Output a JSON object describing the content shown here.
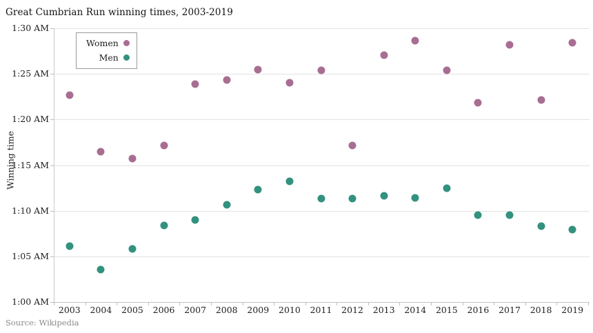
{
  "chart": {
    "title": "Great Cumbrian Run winning times, 2003-2019",
    "y_axis_label": "Winning time",
    "source": "Source: Wikipedia"
  },
  "colors": {
    "women": "#a86e92",
    "men": "#33917f",
    "gridline": "#e2e2e2",
    "axis": "#c2c2c2",
    "text": "#1d1d1d",
    "muted": "#8a8a8a",
    "background": "#ffffff"
  },
  "chart_data": {
    "type": "scatter",
    "title": "Great Cumbrian Run winning times, 2003-2019",
    "xlabel": "",
    "ylabel": "Winning time",
    "categories": [
      "2003",
      "2004",
      "2005",
      "2006",
      "2007",
      "2008",
      "2009",
      "2010",
      "2011",
      "2012",
      "2013",
      "2014",
      "2015",
      "2016",
      "2017",
      "2018",
      "2019"
    ],
    "series": [
      {
        "name": "Women",
        "color": "#a86e92",
        "values": [
          "1:22:40",
          "1:16:30",
          "1:15:45",
          "1:17:10",
          "1:23:55",
          "1:24:20",
          "1:25:30",
          "1:24:00",
          "1:25:25",
          "1:17:10",
          "1:27:05",
          "1:28:40",
          "1:25:25",
          "1:21:50",
          "1:28:10",
          "1:22:10",
          "1:28:25"
        ]
      },
      {
        "name": "Men",
        "color": "#33917f",
        "values": [
          "1:06:05",
          "1:03:35",
          "1:05:50",
          "1:08:25",
          "1:09:00",
          "1:10:40",
          "1:12:20",
          "1:13:15",
          "1:11:20",
          "1:11:20",
          "1:11:40",
          "1:11:25",
          "1:12:30",
          "1:09:30",
          "1:09:30",
          "1:08:20",
          "1:07:55"
        ]
      }
    ],
    "y_ticks": [
      "1:00 AM",
      "1:05 AM",
      "1:10 AM",
      "1:15 AM",
      "1:20 AM",
      "1:25 AM",
      "1:30 AM"
    ],
    "ylim": [
      "1:00 AM",
      "1:30 AM"
    ],
    "grid": "horizontal",
    "legend_position": "top-left-inside"
  }
}
